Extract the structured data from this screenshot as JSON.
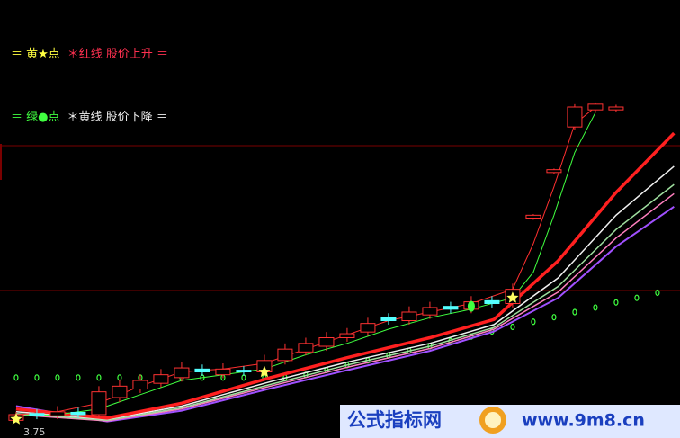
{
  "legend": [
    [
      {
        "text": "＝ 黄★点",
        "color": "#ffff40"
      },
      {
        "text": "＊红线 股价上升 ＝",
        "color": "#ff3050"
      }
    ],
    [
      {
        "text": "＝ 绿●点",
        "color": "#40ff40"
      },
      {
        "text": "＊黄线 股价下降 ＝",
        "color": "#f0f0f0"
      }
    ]
  ],
  "chart_data": {
    "type": "candlestick",
    "xlim": [
      -0.78,
      32.09
    ],
    "ylim": [
      3.5,
      9.5
    ],
    "up_color": "#ff3232",
    "down_color": "#54ffff",
    "open": [
      3.7,
      3.82,
      3.78,
      3.84,
      3.8,
      4.1,
      4.25,
      4.35,
      4.45,
      4.6,
      4.5,
      4.58,
      4.55,
      4.75,
      4.9,
      5.0,
      5.15,
      5.25,
      5.5,
      5.45,
      5.55,
      5.7,
      5.65,
      5.8,
      5.75,
      7.25,
      8.05,
      8.85,
      9.15,
      9.15
    ],
    "high": [
      3.85,
      3.9,
      3.95,
      3.92,
      4.3,
      4.4,
      4.5,
      4.6,
      4.72,
      4.68,
      4.7,
      4.65,
      4.85,
      5.05,
      5.15,
      5.25,
      5.32,
      5.5,
      5.58,
      5.7,
      5.78,
      5.78,
      5.88,
      5.88,
      6.1,
      7.32,
      8.12,
      9.25,
      9.28,
      9.24
    ],
    "low": [
      3.75,
      3.72,
      3.72,
      3.74,
      3.74,
      4.02,
      4.18,
      4.28,
      4.38,
      4.48,
      4.44,
      4.48,
      4.48,
      4.68,
      4.84,
      4.92,
      5.08,
      5.18,
      5.38,
      5.38,
      5.48,
      5.58,
      5.58,
      5.68,
      5.68,
      7.22,
      8.02,
      8.8,
      9.1,
      9.12
    ],
    "close": [
      3.8,
      3.78,
      3.85,
      3.8,
      4.2,
      4.3,
      4.4,
      4.5,
      4.62,
      4.55,
      4.6,
      4.55,
      4.75,
      4.95,
      5.05,
      5.15,
      5.22,
      5.4,
      5.45,
      5.6,
      5.68,
      5.65,
      5.78,
      5.75,
      6.0,
      7.3,
      8.1,
      9.2,
      9.25,
      9.2
    ],
    "lines": [
      {
        "color": "#a050ff",
        "width": 2,
        "x": [
          0,
          4.4,
          8,
          12.3,
          16,
          20,
          23.1,
          26.2,
          29,
          31.8
        ],
        "values": [
          3.95,
          3.68,
          3.87,
          4.26,
          4.58,
          4.92,
          5.26,
          5.85,
          6.75,
          7.45
        ]
      },
      {
        "color": "#ff7fbf",
        "width": 1.5,
        "x": [
          0,
          4.4,
          8,
          12.3,
          16,
          20,
          23.1,
          26.2,
          29,
          31.8
        ],
        "values": [
          3.8,
          3.69,
          3.9,
          4.3,
          4.63,
          4.96,
          5.3,
          5.95,
          6.9,
          7.68
        ]
      },
      {
        "color": "#9fdf9f",
        "width": 1.5,
        "x": [
          0,
          4.4,
          8,
          12.3,
          16,
          20,
          23.1,
          26.2,
          29,
          31.8
        ],
        "values": [
          3.82,
          3.7,
          3.92,
          4.33,
          4.67,
          5.0,
          5.33,
          6.05,
          7.05,
          7.84
        ]
      },
      {
        "color": "#f0f0f0",
        "width": 1.5,
        "x": [
          0,
          4.4,
          8,
          12.3,
          16,
          20,
          23.1,
          26.2,
          29,
          31.8
        ],
        "values": [
          3.85,
          3.72,
          3.95,
          4.38,
          4.72,
          5.05,
          5.38,
          6.2,
          7.3,
          8.16
        ]
      },
      {
        "color": "#ff2020",
        "width": 3.5,
        "x": [
          0,
          4.4,
          8,
          12.3,
          16,
          20,
          23.1,
          26.2,
          29,
          31.8
        ],
        "values": [
          3.9,
          3.74,
          4.0,
          4.45,
          4.8,
          5.15,
          5.47,
          6.5,
          7.7,
          8.74
        ]
      },
      {
        "color": "#40ff40",
        "width": 1,
        "x": [
          0,
          2,
          4,
          6,
          8,
          10,
          12,
          14,
          16,
          18,
          20,
          22,
          24,
          25,
          26,
          27,
          28
        ],
        "values": [
          3.78,
          3.8,
          3.9,
          4.15,
          4.4,
          4.5,
          4.6,
          4.85,
          5.05,
          5.3,
          5.5,
          5.65,
          5.85,
          6.3,
          7.3,
          8.4,
          9.1
        ]
      },
      {
        "color": "#ff3030",
        "width": 1,
        "x": [
          0,
          2,
          4,
          6,
          8,
          10,
          12,
          14,
          16,
          18,
          20,
          22,
          24,
          25,
          26,
          27,
          28
        ],
        "values": [
          3.8,
          3.85,
          4.0,
          4.3,
          4.55,
          4.6,
          4.7,
          4.95,
          5.2,
          5.45,
          5.6,
          5.75,
          6.0,
          6.8,
          7.8,
          8.9,
          9.2
        ]
      }
    ],
    "dots": {
      "color": "#40ff40",
      "values": [
        4.45,
        4.45,
        4.45,
        4.45,
        4.45,
        4.45,
        4.45,
        4.45,
        4.45,
        4.45,
        4.45,
        4.45,
        4.45,
        4.45,
        4.5,
        4.58,
        4.67,
        4.75,
        4.84,
        4.92,
        5.0,
        5.09,
        5.17,
        5.26,
        5.34,
        5.43,
        5.51,
        5.6,
        5.68,
        5.77,
        5.85,
        5.94
      ]
    },
    "stars": {
      "color": "#ffff60",
      "x": [
        0,
        12,
        24
      ],
      "values": [
        3.72,
        4.55,
        5.85
      ]
    },
    "green_marks": {
      "color": "#40ff40",
      "x": [
        22
      ],
      "values": [
        5.7
      ]
    }
  },
  "watermark": {
    "site": "公式指标网",
    "url": "www.9m8.cn"
  }
}
